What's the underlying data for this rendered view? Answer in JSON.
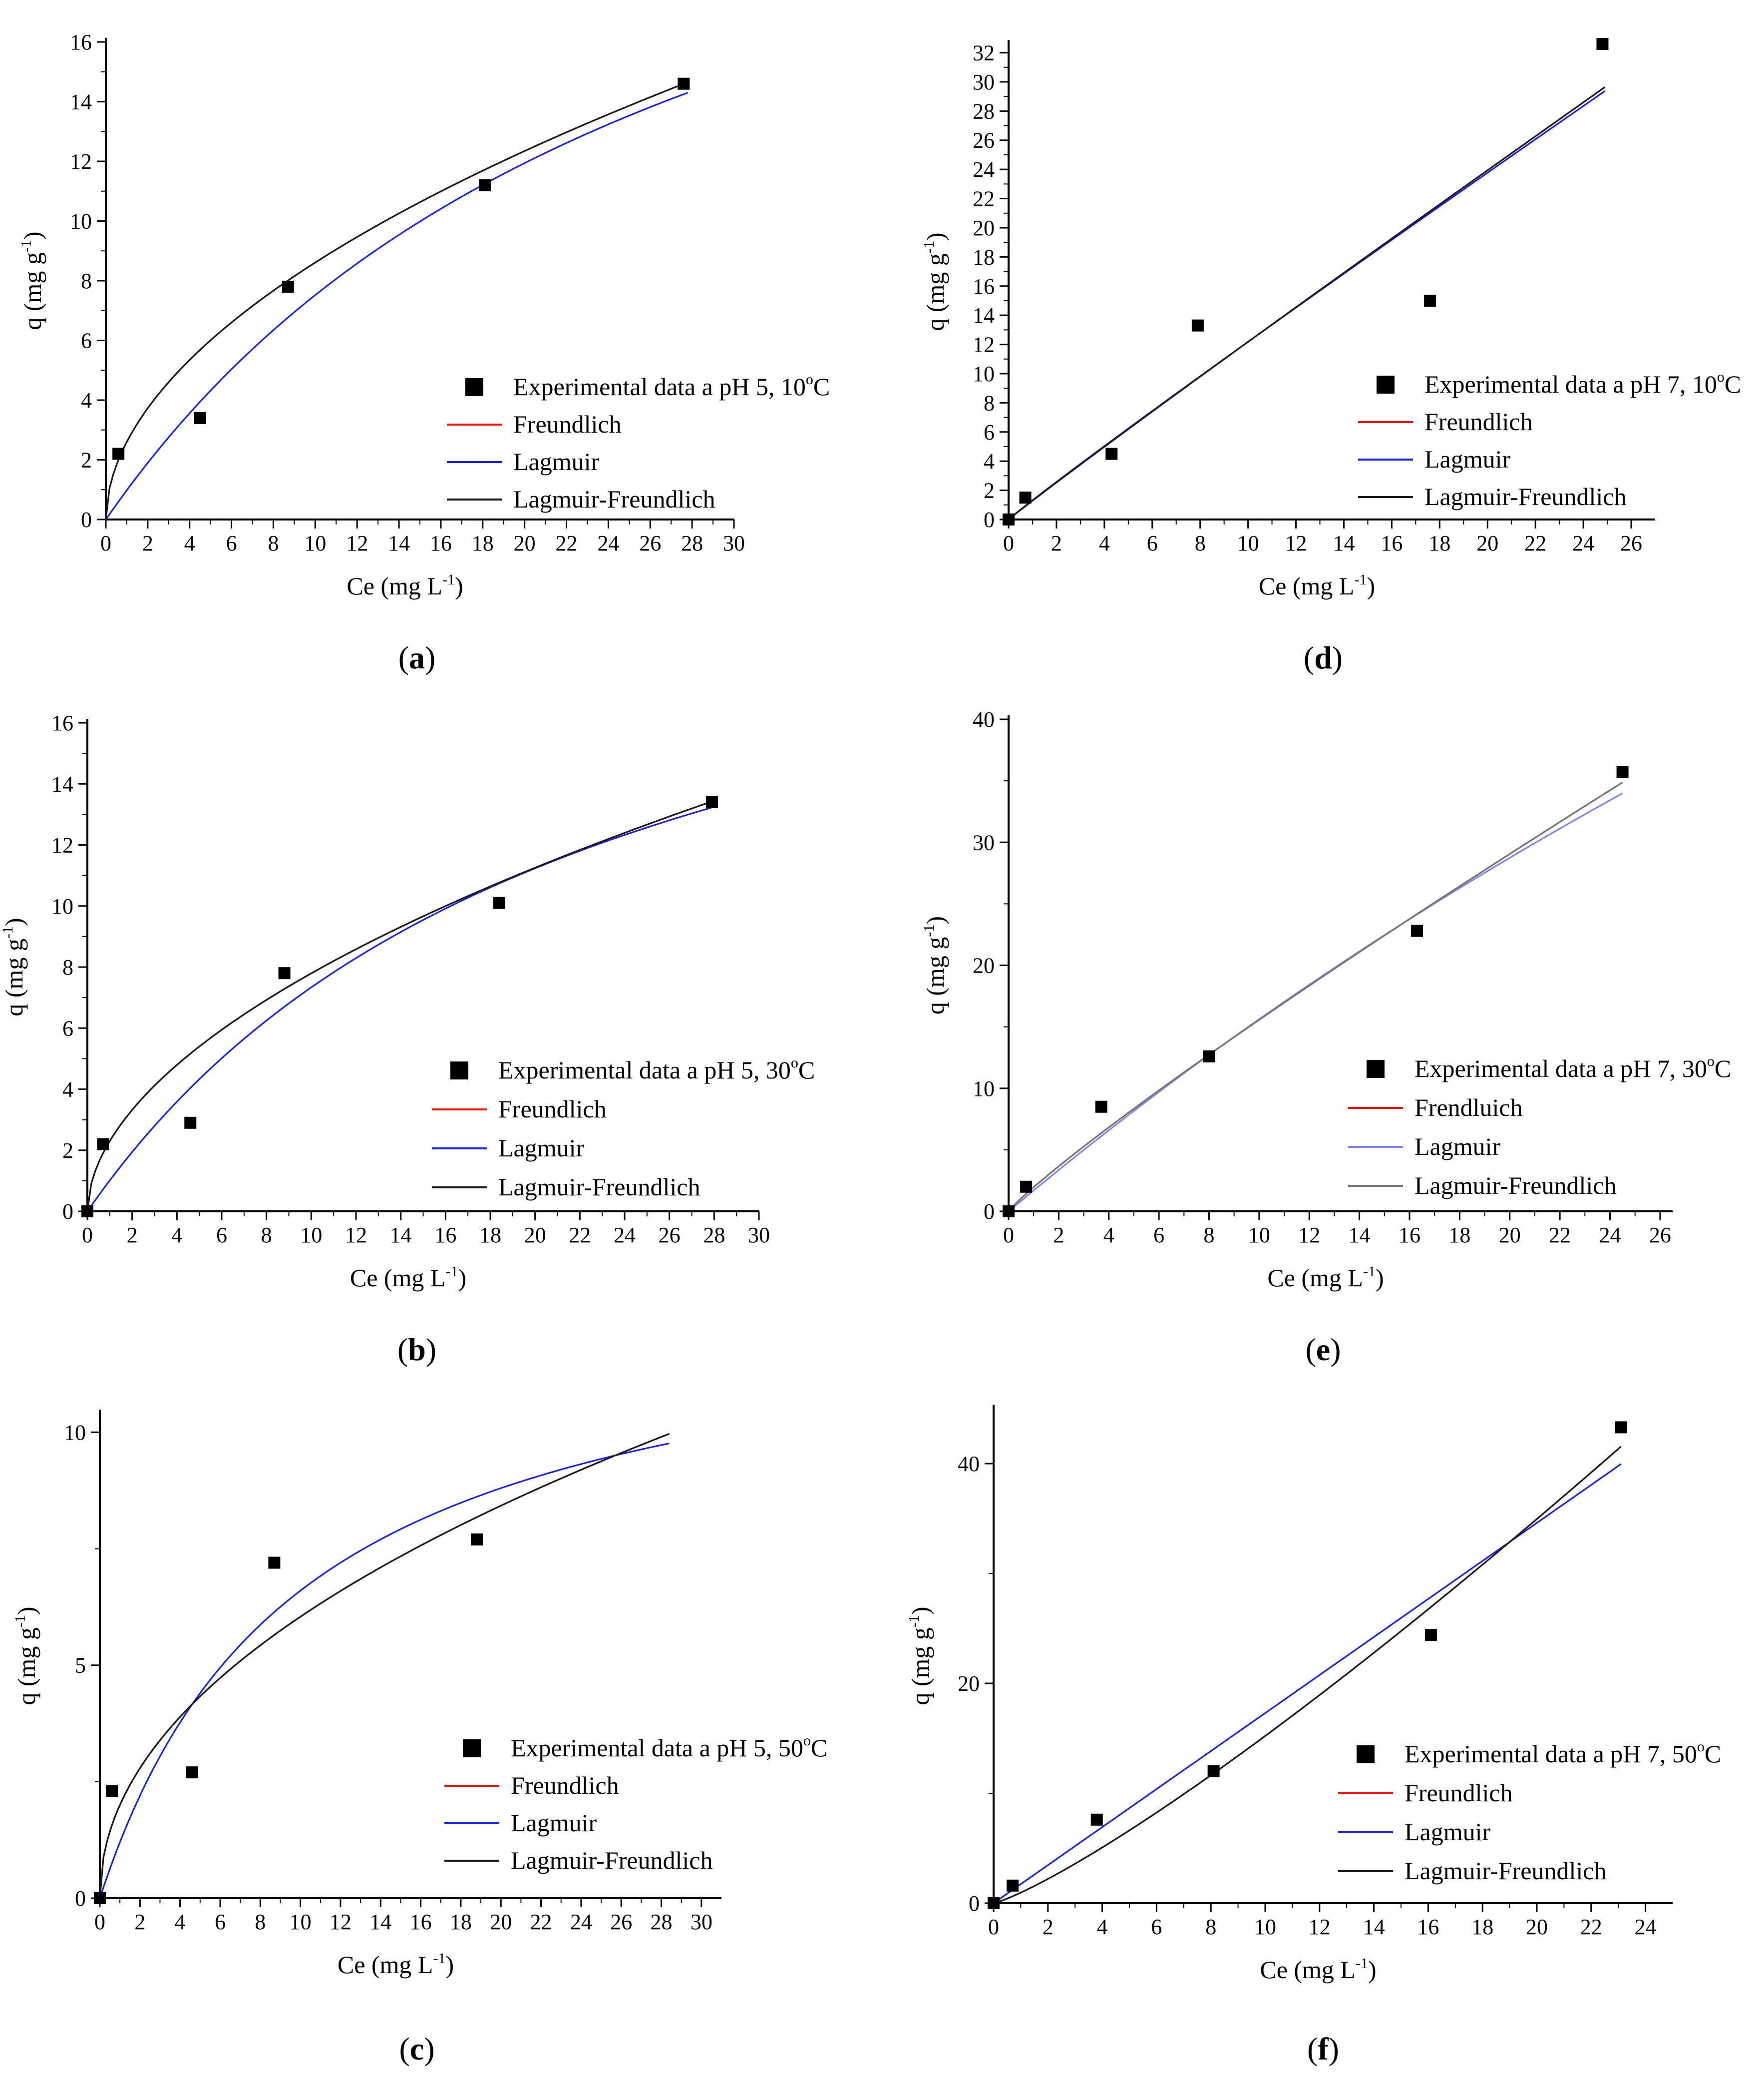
{
  "colors": {
    "freundlich": "#e8140c",
    "lagmuir": "#1a23d6",
    "lagmuir_light": "#7a86ee",
    "lf": "#1a1a1a",
    "point": "#000000"
  },
  "chart_data": [
    {
      "id": "a",
      "type": "scatter+line",
      "caption_letter": "a",
      "xlabel_main": "Ce (mg L",
      "xlabel_sup": "-1",
      "xlabel_tail": ")",
      "ylabel_main": "q (mg g",
      "ylabel_sup": "-1",
      "ylabel_tail": ")",
      "xlim": [
        0,
        30
      ],
      "ylim": [
        0,
        16
      ],
      "xticks": [
        "0",
        "2",
        "4",
        "6",
        "8",
        "10",
        "12",
        "14",
        "16",
        "18",
        "20",
        "22",
        "24",
        "26",
        "28",
        "30"
      ],
      "yticks": [
        "0",
        "2",
        "4",
        "6",
        "8",
        "10",
        "12",
        "14",
        "16"
      ],
      "points": [
        [
          0.6,
          2.2
        ],
        [
          4.5,
          3.4
        ],
        [
          8.7,
          7.8
        ],
        [
          18.1,
          11.2
        ],
        [
          27.6,
          14.6
        ]
      ],
      "series": [
        {
          "name": "Freundlich",
          "model": "freundlich",
          "kf": 2.6,
          "n": 0.52,
          "xmax": 27.8,
          "color": "#e8140c"
        },
        {
          "name": "Lagmuir",
          "model": "langmuir",
          "qm": 29,
          "kl": 0.035,
          "xmax": 27.8,
          "color": "#1a23d6"
        },
        {
          "name": "Lagmuir-Freundlich",
          "model": "freundlich",
          "kf": 2.6,
          "n": 0.52,
          "xmax": 27.8,
          "color": "#1a1a1a"
        }
      ],
      "legend": [
        {
          "label": "Experimental data a pH 5, 10",
          "deg": "o",
          "unit": "C",
          "kind": "point"
        },
        {
          "label": "Freundlich",
          "kind": "line",
          "color": "#e8140c"
        },
        {
          "label": "Lagmuir",
          "kind": "line",
          "color": "#1a23d6"
        },
        {
          "label": "Lagmuir-Freundlich",
          "kind": "line",
          "color": "#1a1a1a"
        }
      ]
    },
    {
      "id": "b",
      "type": "scatter+line",
      "caption_letter": "b",
      "xlabel_main": "Ce (mg L",
      "xlabel_sup": "-1",
      "xlabel_tail": ")",
      "ylabel_main": "q (mg g",
      "ylabel_sup": "-1",
      "ylabel_tail": ")",
      "xlim": [
        0,
        30
      ],
      "ylim": [
        0,
        16
      ],
      "xticks": [
        "0",
        "2",
        "4",
        "6",
        "8",
        "10",
        "12",
        "14",
        "16",
        "18",
        "20",
        "22",
        "24",
        "26",
        "28",
        "30"
      ],
      "yticks": [
        "0",
        "2",
        "4",
        "6",
        "8",
        "10",
        "12",
        "14",
        "16"
      ],
      "points": [
        [
          0,
          0
        ],
        [
          0.7,
          2.2
        ],
        [
          4.6,
          2.9
        ],
        [
          8.8,
          7.8
        ],
        [
          18.4,
          10.1
        ],
        [
          27.9,
          13.4
        ]
      ],
      "series": [
        {
          "name": "Freundlich",
          "model": "freundlich",
          "kf": 2.3,
          "n": 0.53,
          "xmax": 28,
          "color": "#e8140c"
        },
        {
          "name": "Lagmuir",
          "model": "langmuir",
          "qm": 24,
          "kl": 0.044,
          "xmax": 28,
          "color": "#1a23d6"
        },
        {
          "name": "Lagmuir-Freundlich",
          "model": "freundlich",
          "kf": 2.3,
          "n": 0.53,
          "xmax": 28,
          "color": "#1a1a1a"
        }
      ],
      "legend": [
        {
          "label": "Experimental data a pH 5, 30",
          "deg": "o",
          "unit": "C",
          "kind": "point"
        },
        {
          "label": "Freundlich",
          "kind": "line",
          "color": "#e8140c"
        },
        {
          "label": "Lagmuir",
          "kind": "line",
          "color": "#1a23d6"
        },
        {
          "label": "Lagmuir-Freundlich",
          "kind": "line",
          "color": "#1a1a1a"
        }
      ]
    },
    {
      "id": "c",
      "type": "scatter+line",
      "caption_letter": "c",
      "xlabel_main": "Ce (mg L",
      "xlabel_sup": "-1",
      "xlabel_tail": ")",
      "ylabel_main": "q (mg g",
      "ylabel_sup": "-1",
      "ylabel_tail": ")",
      "xlim": [
        0,
        31
      ],
      "ylim": [
        0,
        10.4
      ],
      "xticks": [
        "0",
        "2",
        "4",
        "6",
        "8",
        "10",
        "12",
        "14",
        "16",
        "18",
        "20",
        "22",
        "24",
        "26",
        "28",
        "30"
      ],
      "yticks": [
        "0",
        "5",
        "10"
      ],
      "ytick_values": [
        0,
        5,
        10
      ],
      "points": [
        [
          0,
          0
        ],
        [
          0.6,
          2.3
        ],
        [
          4.6,
          2.7
        ],
        [
          8.7,
          7.2
        ],
        [
          18.8,
          7.7
        ]
      ],
      "series": [
        {
          "name": "Freundlich",
          "model": "freundlich",
          "kf": 2.0,
          "n": 0.48,
          "xmax": 28.4,
          "color": "#e8140c"
        },
        {
          "name": "Lagmuir",
          "model": "langmuir",
          "qm": 13.2,
          "kl": 0.1,
          "xmax": 28.4,
          "color": "#1a23d6"
        },
        {
          "name": "Lagmuir-Freundlich",
          "model": "freundlich",
          "kf": 2.0,
          "n": 0.48,
          "xmax": 28.4,
          "color": "#1a1a1a"
        }
      ],
      "legend": [
        {
          "label": "Experimental data a pH 5, 50",
          "deg": "o",
          "unit": "C",
          "kind": "point"
        },
        {
          "label": "Freundlich",
          "kind": "line",
          "color": "#e8140c"
        },
        {
          "label": "Lagmuir",
          "kind": "line",
          "color": "#1a23d6"
        },
        {
          "label": "Lagmuir-Freundlich",
          "kind": "line",
          "color": "#1a1a1a"
        }
      ]
    },
    {
      "id": "d",
      "type": "scatter+line",
      "caption_letter": "d",
      "xlabel_main": "Ce (mg L",
      "xlabel_sup": "-1",
      "xlabel_tail": ")",
      "ylabel_main": "q (mg g",
      "ylabel_sup": "-1",
      "ylabel_tail": ")",
      "xlim": [
        0,
        27
      ],
      "ylim": [
        0,
        32.6
      ],
      "xticks": [
        "0",
        "2",
        "4",
        "6",
        "8",
        "10",
        "12",
        "14",
        "16",
        "18",
        "20",
        "22",
        "24",
        "26"
      ],
      "yticks": [
        "0",
        "2",
        "4",
        "6",
        "8",
        "10",
        "12",
        "14",
        "16",
        "18",
        "20",
        "22",
        "24",
        "26",
        "28",
        "30",
        "32"
      ],
      "points": [
        [
          0,
          0
        ],
        [
          0.7,
          1.5
        ],
        [
          4.3,
          4.5
        ],
        [
          7.9,
          13.3
        ],
        [
          17.6,
          15.0
        ],
        [
          24.8,
          32.6
        ]
      ],
      "series": [
        {
          "name": "Freundlich",
          "model": "freundlich",
          "kf": 1.29,
          "n": 0.975,
          "xmax": 24.9,
          "color": "#e8140c"
        },
        {
          "name": "Lagmuir",
          "model": "freundlich",
          "kf": 1.32,
          "n": 0.965,
          "xmax": 24.9,
          "color": "#1a23d6"
        },
        {
          "name": "Lagmuir-Freundlich",
          "model": "freundlich",
          "kf": 1.29,
          "n": 0.975,
          "xmax": 24.9,
          "color": "#1a1a1a"
        }
      ],
      "legend": [
        {
          "label": "Experimental data a pH 7, 10",
          "deg": "o",
          "unit": "C",
          "kind": "point"
        },
        {
          "label": "Freundlich",
          "kind": "line",
          "color": "#e8140c"
        },
        {
          "label": "Lagmuir",
          "kind": "line",
          "color": "#1a23d6"
        },
        {
          "label": "Lagmuir-Freundlich",
          "kind": "line",
          "color": "#1a1a1a"
        }
      ]
    },
    {
      "id": "e",
      "type": "scatter+line",
      "caption_letter": "e",
      "xlabel_main": "Ce (mg L",
      "xlabel_sup": "-1",
      "xlabel_tail": ")",
      "ylabel_main": "q (mg g",
      "ylabel_sup": "-1",
      "ylabel_tail": ")",
      "xlim": [
        0,
        26.5
      ],
      "ylim": [
        0,
        40
      ],
      "xticks": [
        "0",
        "2",
        "4",
        "6",
        "8",
        "10",
        "12",
        "14",
        "16",
        "18",
        "20",
        "22",
        "24",
        "26"
      ],
      "yticks": [
        "0",
        "10",
        "20",
        "30",
        "40"
      ],
      "ytick_values": [
        0,
        10,
        20,
        30,
        40
      ],
      "points": [
        [
          0,
          0
        ],
        [
          0.7,
          2.0
        ],
        [
          3.7,
          8.5
        ],
        [
          8.0,
          12.6
        ],
        [
          16.3,
          22.8
        ],
        [
          24.5,
          35.7
        ]
      ],
      "series": [
        {
          "name": "Frendluich",
          "model": "freundlich",
          "kf": 1.96,
          "n": 0.9,
          "xmax": 24.5,
          "color": "#e8140c"
        },
        {
          "name": "Lagmuir",
          "model": "langmuir",
          "qm": 180,
          "kl": 0.0095,
          "xmax": 24.5,
          "color": "#7a86ee"
        },
        {
          "name": "Lagmuir-Freundlich",
          "model": "freundlich",
          "kf": 1.96,
          "n": 0.9,
          "xmax": 24.5,
          "color": "#777777"
        }
      ],
      "legend": [
        {
          "label": "Experimental data a pH 7, 30",
          "deg": "o",
          "unit": "C",
          "kind": "point"
        },
        {
          "label": "Frendluich",
          "kind": "line",
          "color": "#e8140c"
        },
        {
          "label": "Lagmuir",
          "kind": "line",
          "color": "#7a86ee"
        },
        {
          "label": "Lagmuir-Freundlich",
          "kind": "line",
          "color": "#777777"
        }
      ]
    },
    {
      "id": "f",
      "type": "scatter+line",
      "caption_letter": "f",
      "xlabel_main": "Ce (mg L",
      "xlabel_sup": "-1",
      "xlabel_tail": ")",
      "ylabel_main": "q (mg g",
      "ylabel_sup": "-1",
      "ylabel_tail": ")",
      "xlim": [
        0,
        25
      ],
      "ylim": [
        0,
        45
      ],
      "xticks": [
        "0",
        "2",
        "4",
        "6",
        "8",
        "10",
        "12",
        "14",
        "16",
        "18",
        "20",
        "22",
        "24"
      ],
      "yticks": [
        "0",
        "20",
        "40"
      ],
      "ytick_values": [
        0,
        20,
        40
      ],
      "points": [
        [
          0,
          0
        ],
        [
          0.7,
          1.6
        ],
        [
          3.8,
          7.6
        ],
        [
          8.1,
          12.0
        ],
        [
          16.1,
          24.4
        ],
        [
          23.1,
          43.3
        ]
      ],
      "series": [
        {
          "name": "Freundlich",
          "model": "freundlich",
          "kf": 0.96,
          "n": 1.2,
          "xmax": 23.1,
          "color": "#e8140c"
        },
        {
          "name": "Lagmuir",
          "model": "linear",
          "slope": 1.73,
          "xmax": 23.1,
          "color": "#1a23d6"
        },
        {
          "name": "Lagmuir-Freundlich",
          "model": "freundlich",
          "kf": 0.96,
          "n": 1.2,
          "xmax": 23.1,
          "color": "#1a1a1a"
        }
      ],
      "legend": [
        {
          "label": "Experimental data a pH 7, 50",
          "deg": "o",
          "unit": "C",
          "kind": "point"
        },
        {
          "label": "Freundlich",
          "kind": "line",
          "color": "#e8140c"
        },
        {
          "label": "Lagmuir",
          "kind": "line",
          "color": "#1a23d6"
        },
        {
          "label": "Lagmuir-Freundlich",
          "kind": "line",
          "color": "#1a1a1a"
        }
      ]
    }
  ]
}
